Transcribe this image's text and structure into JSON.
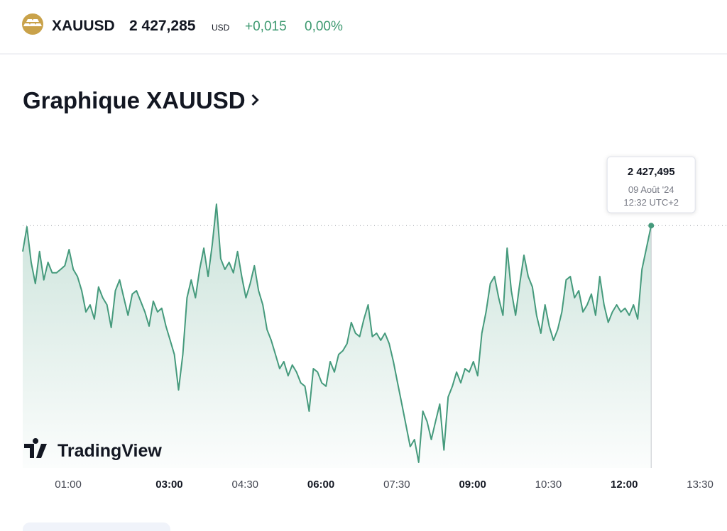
{
  "header": {
    "symbol": "XAUUSD",
    "price": "2 427,285",
    "currency": "USD",
    "change": "+0,015",
    "change_percent": "0,00%"
  },
  "title": "Graphique XAUUSD",
  "watermark": "TradingView",
  "tooltip": {
    "price": "2 427,495",
    "date": "09 Août '24",
    "time": "12:32 UTC+2"
  },
  "chart_data": {
    "type": "line",
    "color": "#459a7c",
    "x": [
      6,
      11,
      16,
      21,
      26,
      31,
      36,
      41,
      46,
      51,
      56,
      61,
      66,
      71,
      76,
      81,
      86,
      91,
      96,
      101,
      106,
      111,
      116,
      121,
      126,
      131,
      136,
      141,
      146,
      151,
      156,
      161,
      166,
      171,
      176,
      181,
      186,
      191,
      196,
      201,
      206,
      211,
      216,
      221,
      226,
      231,
      236,
      241,
      246,
      251,
      256,
      261,
      266,
      271,
      276,
      281,
      286,
      291,
      296,
      301,
      306,
      311,
      316,
      321,
      326,
      331,
      336,
      341,
      346,
      351,
      356,
      361,
      366,
      371,
      376,
      381,
      386,
      391,
      396,
      401,
      406,
      411,
      416,
      421,
      426,
      431,
      436,
      441,
      446,
      451,
      456,
      461,
      466,
      471,
      476,
      481,
      486,
      491,
      496,
      501,
      506,
      511,
      516,
      521,
      526,
      531,
      536,
      541,
      546,
      551,
      556,
      561,
      566,
      571,
      576,
      581,
      586,
      591,
      596,
      601,
      606,
      611,
      616,
      621,
      626,
      631,
      636,
      641,
      646,
      651,
      656,
      661,
      666,
      671,
      676,
      681,
      686,
      691,
      696,
      701,
      706,
      711,
      716,
      721,
      726,
      731,
      736,
      741,
      752
    ],
    "values": [
      2426.58,
      2427.45,
      2426.2,
      2425.45,
      2426.58,
      2425.58,
      2426.2,
      2425.83,
      2425.83,
      2425.95,
      2426.08,
      2426.65,
      2425.95,
      2425.7,
      2425.2,
      2424.45,
      2424.7,
      2424.2,
      2425.33,
      2424.95,
      2424.7,
      2423.9,
      2425.2,
      2425.58,
      2424.95,
      2424.33,
      2425.08,
      2425.2,
      2424.83,
      2424.45,
      2423.95,
      2424.83,
      2424.45,
      2424.58,
      2423.95,
      2423.45,
      2422.95,
      2421.7,
      2422.95,
      2424.95,
      2425.58,
      2424.95,
      2425.95,
      2426.7,
      2425.7,
      2426.83,
      2428.25,
      2426.33,
      2425.95,
      2426.2,
      2425.83,
      2426.58,
      2425.7,
      2424.95,
      2425.45,
      2426.08,
      2425.2,
      2424.7,
      2423.83,
      2423.45,
      2422.95,
      2422.45,
      2422.7,
      2422.2,
      2422.58,
      2422.33,
      2421.95,
      2421.83,
      2420.95,
      2422.45,
      2422.33,
      2421.95,
      2421.83,
      2422.7,
      2422.33,
      2422.95,
      2423.08,
      2423.33,
      2424.08,
      2423.7,
      2423.58,
      2424.2,
      2424.7,
      2423.58,
      2423.7,
      2423.45,
      2423.7,
      2423.33,
      2422.7,
      2421.95,
      2421.2,
      2420.45,
      2419.7,
      2419.95,
      2419.15,
      2420.95,
      2420.58,
      2419.95,
      2420.58,
      2421.2,
      2419.58,
      2421.45,
      2421.83,
      2422.33,
      2421.95,
      2422.45,
      2422.33,
      2422.7,
      2422.2,
      2423.7,
      2424.45,
      2425.45,
      2425.7,
      2424.95,
      2424.33,
      2426.7,
      2425.2,
      2424.33,
      2425.45,
      2426.45,
      2425.7,
      2425.33,
      2424.33,
      2423.7,
      2424.7,
      2423.95,
      2423.45,
      2423.83,
      2424.45,
      2425.58,
      2425.7,
      2424.95,
      2425.2,
      2424.45,
      2424.7,
      2425.08,
      2424.33,
      2425.7,
      2424.7,
      2424.08,
      2424.45,
      2424.7,
      2424.45,
      2424.58,
      2424.33,
      2424.7,
      2424.2,
      2425.95,
      2427.495
    ],
    "xlim": [
      6,
      842
    ],
    "ylim": [
      2418.95,
      2430.45
    ],
    "xticks": [
      {
        "value": 60,
        "label": "01:00"
      },
      {
        "value": 180,
        "label": "03:00"
      },
      {
        "value": 270,
        "label": "04:30"
      },
      {
        "value": 360,
        "label": "06:00"
      },
      {
        "value": 450,
        "label": "07:30"
      },
      {
        "value": 540,
        "label": "09:00"
      },
      {
        "value": 630,
        "label": "10:30"
      },
      {
        "value": 720,
        "label": "12:00"
      },
      {
        "value": 810,
        "label": "13:30"
      }
    ]
  }
}
